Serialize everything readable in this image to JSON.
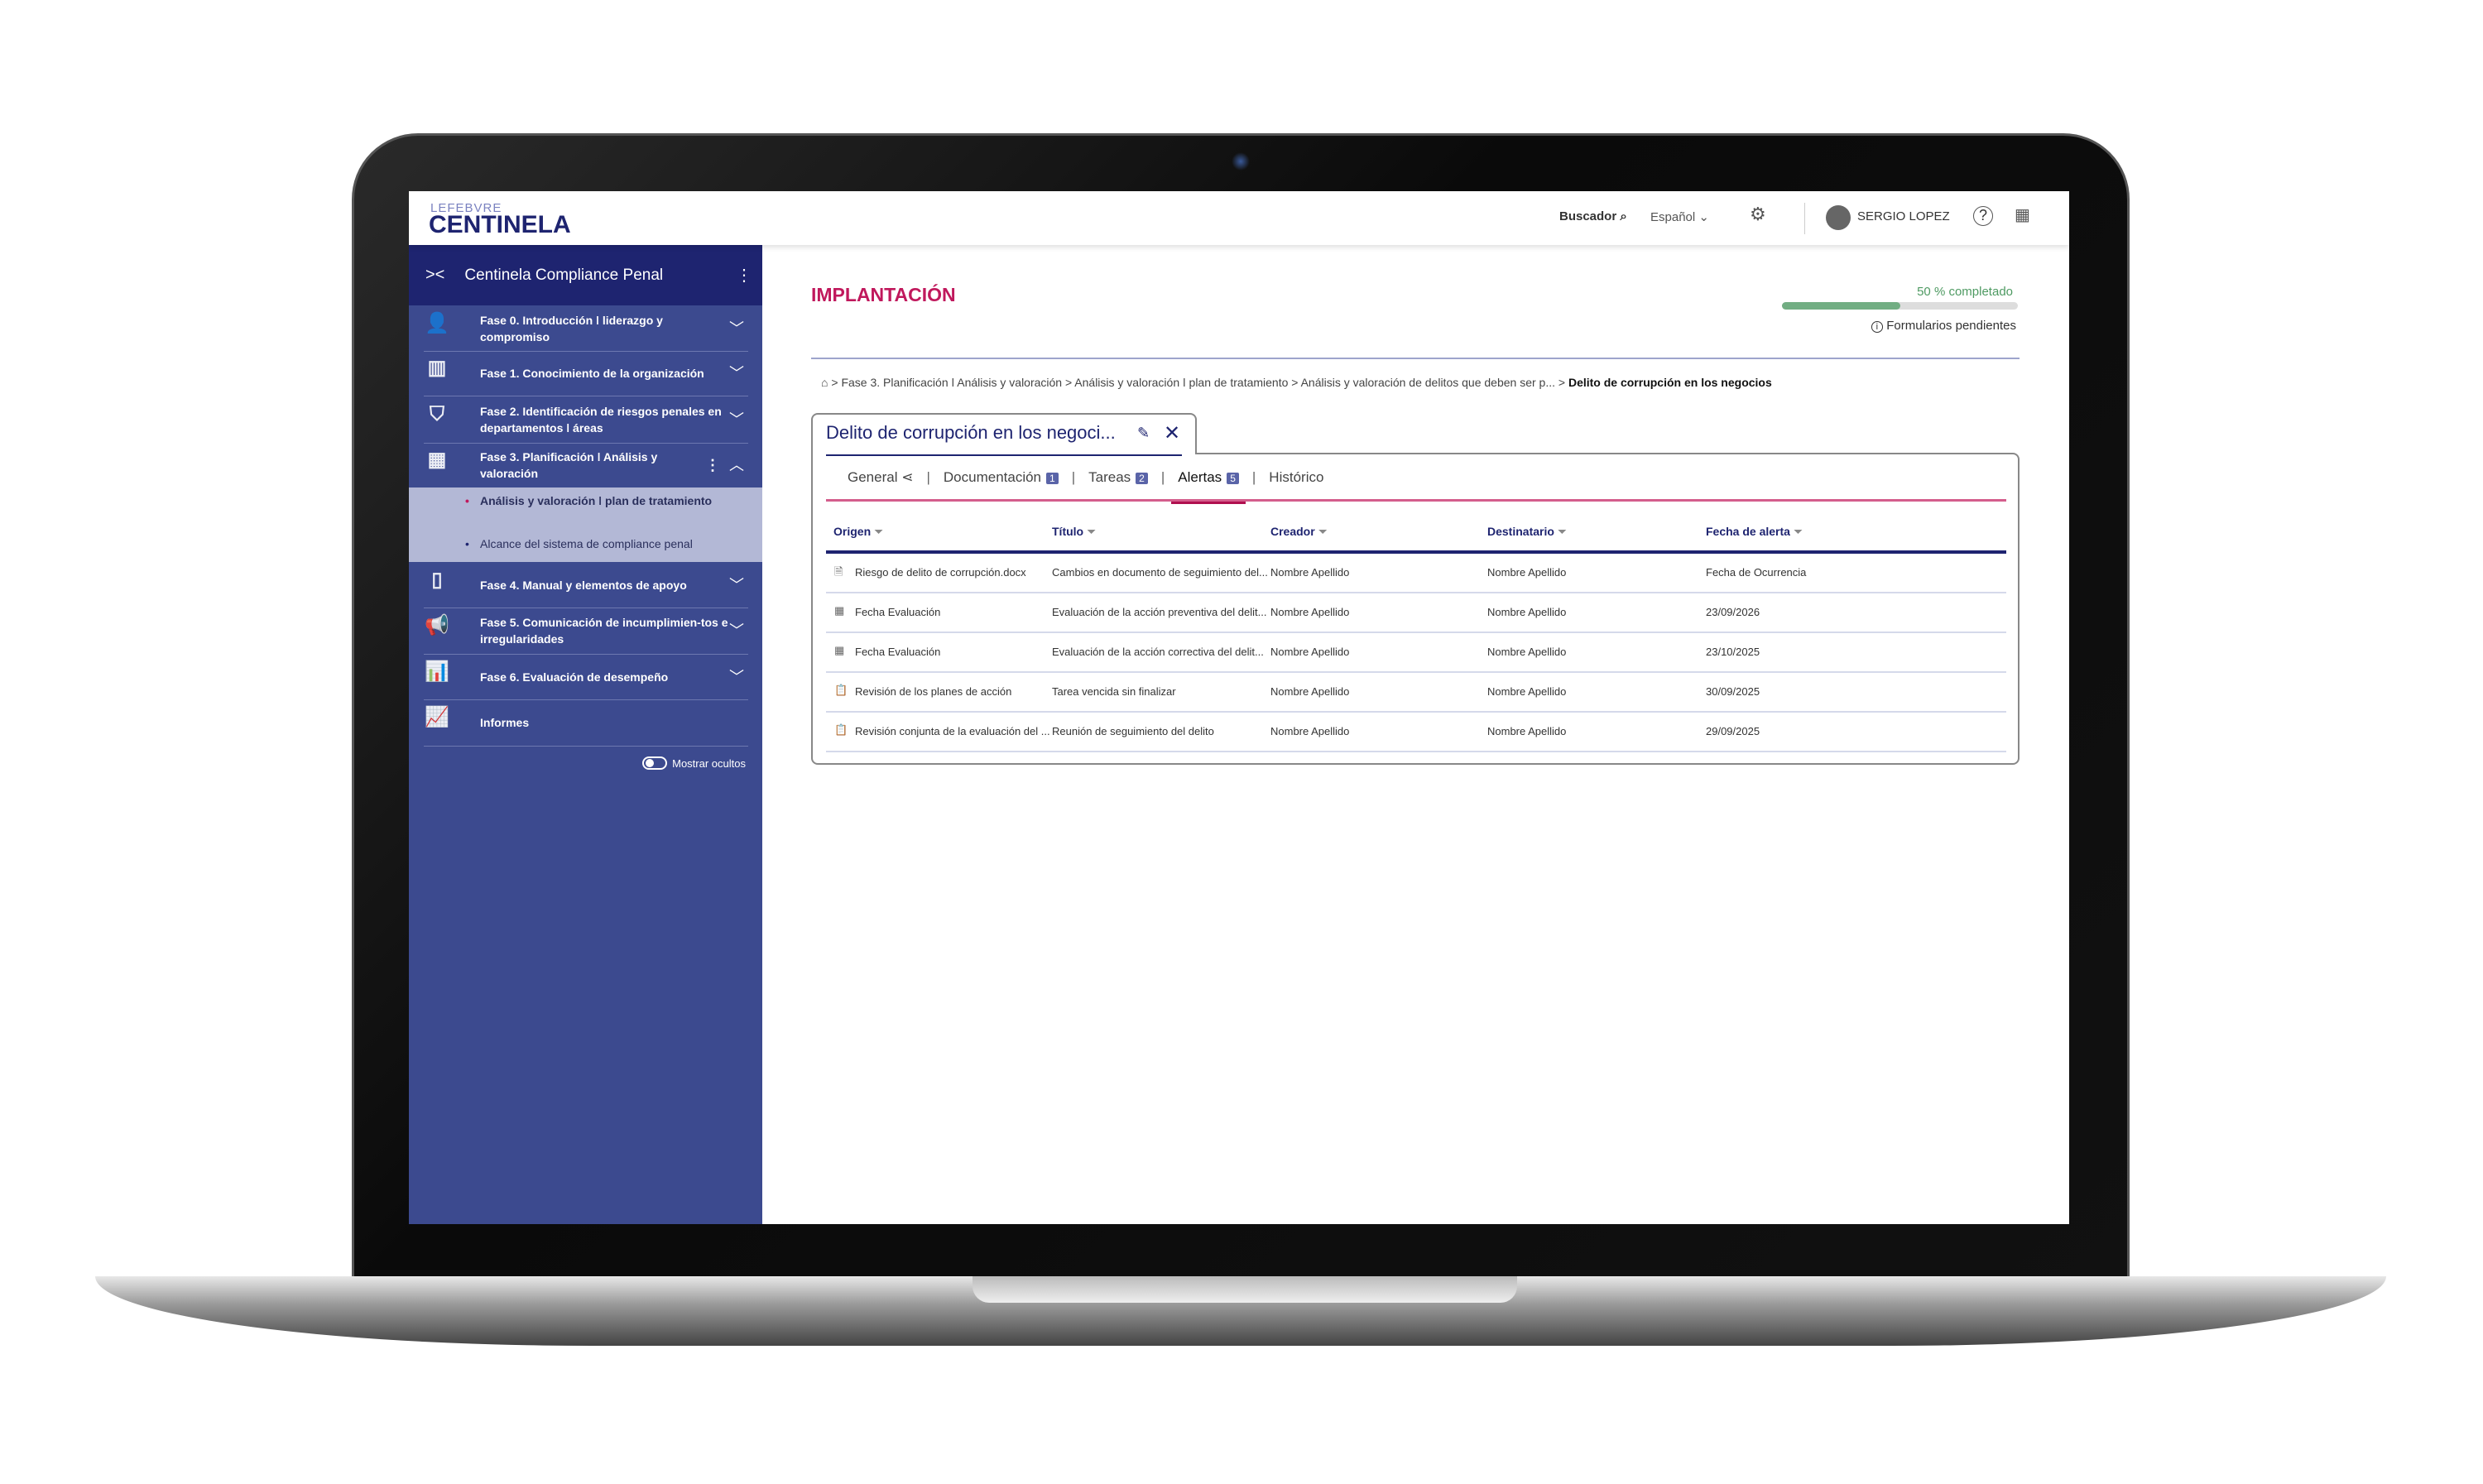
{
  "header": {
    "logo_top": "LEFEBVRE",
    "logo": "CENTINELA",
    "search": "Buscador",
    "language": "Español",
    "user": "SERGIO LOPEZ"
  },
  "sidebar": {
    "title": "Centinela Compliance Penal",
    "toggle_label": "Mostrar ocultos",
    "items": [
      {
        "label": "Fase 0. Introducción ǀ liderazgo y compromiso",
        "icon": "person-icon"
      },
      {
        "label": "Fase 1. Conocimiento de la organización",
        "icon": "building-icon"
      },
      {
        "label": "Fase 2. Identificación de riesgos penales en departamentos ǀ áreas",
        "icon": "shield-icon"
      },
      {
        "label": "Fase 3. Planificación ǀ Análisis y valoración",
        "icon": "calendar-icon"
      },
      {
        "label": "Fase 4. Manual y elementos de apoyo",
        "icon": "book-icon"
      },
      {
        "label": "Fase 5. Comunicación de incumplimien-tos e irregularidades",
        "icon": "megaphone-icon"
      },
      {
        "label": "Fase 6. Evaluación de desempeño",
        "icon": "bar-chart-icon"
      },
      {
        "label": "Informes",
        "icon": "report-chart-icon"
      }
    ],
    "subitems": [
      {
        "label": "Análisis y valoración ǀ plan de tratamiento"
      },
      {
        "label": "Alcance del sistema de compliance penal"
      }
    ]
  },
  "main": {
    "title": "IMPLANTACIÓN",
    "progress_label": "50 % completado",
    "progress": 50,
    "pending": "Formularios pendientes",
    "breadcrumb": [
      "Fase 3. Planificación ǀ Análisis y valoración",
      "Análisis y valoración ǀ plan de tratamiento",
      "Análisis y valoración de delitos que deben ser p...",
      "Delito de corrupción en los negocios"
    ],
    "card_title": "Delito de corrupción en los negoci...",
    "tabs": [
      {
        "label": "General"
      },
      {
        "label": "Documentación",
        "count": "1"
      },
      {
        "label": "Tareas",
        "count": "2"
      },
      {
        "label": "Alertas",
        "count": "5"
      },
      {
        "label": "Histórico"
      }
    ],
    "columns": [
      "Origen",
      "Título",
      "Creador",
      "Destinatario",
      "Fecha de alerta"
    ],
    "rows": [
      [
        "Riesgo de delito de corrupción.docx",
        "Cambios en documento de seguimiento del...",
        "Nombre Apellido",
        "Nombre Apellido",
        "Fecha de Ocurrencia"
      ],
      [
        "Fecha Evaluación",
        "Evaluación de la acción preventiva del delit...",
        "Nombre Apellido",
        "Nombre Apellido",
        "23/09/2026"
      ],
      [
        "Fecha Evaluación",
        "Evaluación de la acción correctiva del delit...",
        "Nombre Apellido",
        "Nombre Apellido",
        "23/10/2025"
      ],
      [
        "Revisión de los planes de acción",
        "Tarea vencida sin finalizar",
        "Nombre Apellido",
        "Nombre Apellido",
        "30/09/2025"
      ],
      [
        "Revisión conjunta de la evaluación del ...",
        "Reunión de seguimiento del delito",
        "Nombre Apellido",
        "Nombre Apellido",
        "29/09/2025"
      ]
    ]
  },
  "colors": {
    "brand": "#1e2470",
    "accent": "#c0185c",
    "sidebar": "#3c4a8f",
    "progress": "#72ae83"
  }
}
